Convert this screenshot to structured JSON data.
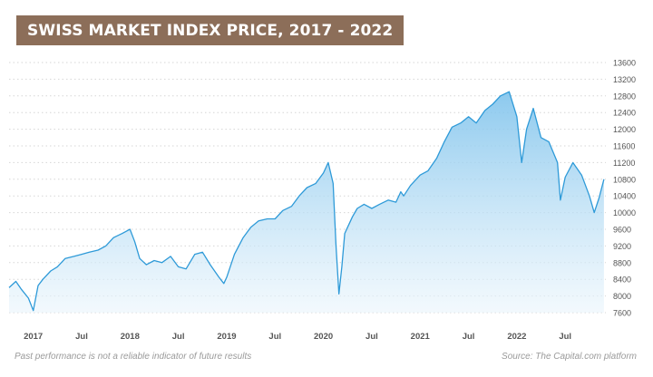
{
  "title": "SWISS MARKET INDEX PRICE, 2017 - 2022",
  "footer": {
    "disclaimer": "Past performance is not a reliable indicator of future results",
    "source": "Source: The Capital.com platform"
  },
  "colors": {
    "title_bg": "#8c6e59",
    "line": "#2e9ad8",
    "fill_top": "#7fc3ec",
    "fill_bottom": "#eaf5fc",
    "grid": "#d6d6d6",
    "tick_text": "#555555"
  },
  "chart_data": {
    "type": "area",
    "title": "SWISS MARKET INDEX PRICE, 2017 - 2022",
    "xlabel": "",
    "ylabel": "",
    "xlim": [
      2016.75,
      2022.92
    ],
    "ylim": [
      7600,
      13600
    ],
    "grid": true,
    "y_axis_position": "right",
    "yticks": [
      "13600",
      "13200",
      "12800",
      "12400",
      "12000",
      "11600",
      "11200",
      "10800",
      "10400",
      "10000",
      "9600",
      "9200",
      "8800",
      "8400",
      "8000",
      "7600"
    ],
    "xticks": [
      {
        "label": "2017",
        "x": 2017.0
      },
      {
        "label": "Jul",
        "x": 2017.5
      },
      {
        "label": "2018",
        "x": 2018.0
      },
      {
        "label": "Jul",
        "x": 2018.5
      },
      {
        "label": "2019",
        "x": 2019.0
      },
      {
        "label": "Jul",
        "x": 2019.5
      },
      {
        "label": "2020",
        "x": 2020.0
      },
      {
        "label": "Jul",
        "x": 2020.5
      },
      {
        "label": "2021",
        "x": 2021.0
      },
      {
        "label": "Jul",
        "x": 2021.5
      },
      {
        "label": "2022",
        "x": 2022.0
      },
      {
        "label": "Jul",
        "x": 2022.5
      }
    ],
    "series": [
      {
        "x": [
          2016.75,
          2016.82,
          2016.88,
          2016.95,
          2017.0,
          2017.05,
          2017.1,
          2017.18,
          2017.25,
          2017.33,
          2017.42,
          2017.5,
          2017.58,
          2017.67,
          2017.75,
          2017.83,
          2017.92,
          2018.0,
          2018.05,
          2018.1,
          2018.17,
          2018.25,
          2018.33,
          2018.42,
          2018.5,
          2018.58,
          2018.67,
          2018.75,
          2018.83,
          2018.92,
          2018.97,
          2019.0,
          2019.08,
          2019.17,
          2019.25,
          2019.33,
          2019.42,
          2019.5,
          2019.58,
          2019.67,
          2019.75,
          2019.83,
          2019.92,
          2020.0,
          2020.05,
          2020.1,
          2020.13,
          2020.16,
          2020.19,
          2020.22,
          2020.25,
          2020.3,
          2020.35,
          2020.42,
          2020.5,
          2020.58,
          2020.67,
          2020.75,
          2020.8,
          2020.83,
          2020.9,
          2021.0,
          2021.08,
          2021.17,
          2021.25,
          2021.33,
          2021.42,
          2021.5,
          2021.58,
          2021.67,
          2021.75,
          2021.83,
          2021.92,
          2022.0,
          2022.05,
          2022.1,
          2022.17,
          2022.25,
          2022.33,
          2022.42,
          2022.45,
          2022.5,
          2022.58,
          2022.67,
          2022.75,
          2022.8,
          2022.85,
          2022.9
        ],
        "values": [
          8200,
          8350,
          8150,
          7950,
          7650,
          8250,
          8400,
          8600,
          8700,
          8900,
          8950,
          9000,
          9050,
          9100,
          9200,
          9400,
          9500,
          9600,
          9300,
          8900,
          8750,
          8850,
          8800,
          8950,
          8700,
          8650,
          9000,
          9050,
          8750,
          8450,
          8300,
          8450,
          9000,
          9400,
          9650,
          9800,
          9850,
          9850,
          10050,
          10150,
          10400,
          10600,
          10700,
          10950,
          11200,
          10700,
          9200,
          8050,
          8700,
          9500,
          9650,
          9900,
          10100,
          10200,
          10100,
          10200,
          10300,
          10250,
          10500,
          10400,
          10650,
          10900,
          11000,
          11300,
          11700,
          12050,
          12150,
          12300,
          12150,
          12450,
          12600,
          12800,
          12900,
          12300,
          11200,
          12000,
          12500,
          11800,
          11700,
          11200,
          10300,
          10850,
          11200,
          10900,
          10400,
          10000,
          10350,
          10800
        ]
      }
    ]
  }
}
